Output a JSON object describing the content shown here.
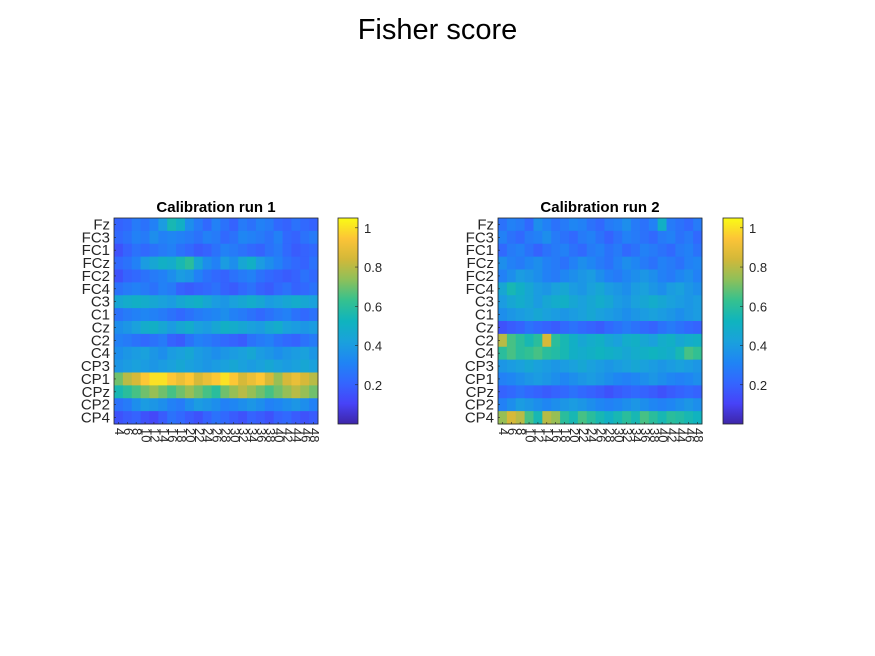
{
  "figure": {
    "title": "Fisher score"
  },
  "chart_data": [
    {
      "type": "heatmap",
      "title": "Calibration run 1",
      "y_labels": [
        "Fz",
        "FC3",
        "FC1",
        "FCz",
        "FC2",
        "FC4",
        "C3",
        "C1",
        "Cz",
        "C2",
        "C4",
        "CP3",
        "CP1",
        "CPz",
        "CP2",
        "CP4"
      ],
      "x_labels": [
        "4",
        "6",
        "8",
        "10",
        "12",
        "14",
        "16",
        "18",
        "20",
        "22",
        "24",
        "26",
        "28",
        "30",
        "32",
        "34",
        "36",
        "38",
        "40",
        "42",
        "44",
        "46",
        "48"
      ],
      "colorbar": {
        "min": 0,
        "max": 1.05,
        "ticks": [
          "0.2",
          "0.4",
          "0.6",
          "0.8",
          "1"
        ],
        "colormap": "parula"
      },
      "values": [
        [
          0.2,
          0.22,
          0.28,
          0.25,
          0.3,
          0.4,
          0.55,
          0.5,
          0.35,
          0.28,
          0.22,
          0.3,
          0.25,
          0.2,
          0.28,
          0.25,
          0.3,
          0.28,
          0.22,
          0.2,
          0.25,
          0.22,
          0.2
        ],
        [
          0.22,
          0.25,
          0.3,
          0.28,
          0.35,
          0.3,
          0.32,
          0.3,
          0.28,
          0.25,
          0.3,
          0.28,
          0.22,
          0.25,
          0.32,
          0.3,
          0.28,
          0.25,
          0.3,
          0.22,
          0.2,
          0.25,
          0.28
        ],
        [
          0.15,
          0.2,
          0.25,
          0.22,
          0.25,
          0.28,
          0.3,
          0.25,
          0.22,
          0.18,
          0.2,
          0.25,
          0.3,
          0.28,
          0.25,
          0.22,
          0.2,
          0.25,
          0.28,
          0.22,
          0.18,
          0.2,
          0.22
        ],
        [
          0.22,
          0.25,
          0.3,
          0.4,
          0.45,
          0.5,
          0.48,
          0.55,
          0.6,
          0.45,
          0.35,
          0.3,
          0.4,
          0.35,
          0.45,
          0.5,
          0.4,
          0.35,
          0.3,
          0.25,
          0.22,
          0.2,
          0.25
        ],
        [
          0.15,
          0.2,
          0.22,
          0.25,
          0.28,
          0.3,
          0.35,
          0.4,
          0.38,
          0.3,
          0.25,
          0.22,
          0.2,
          0.25,
          0.28,
          0.3,
          0.25,
          0.22,
          0.2,
          0.18,
          0.2,
          0.25,
          0.22
        ],
        [
          0.25,
          0.28,
          0.3,
          0.28,
          0.25,
          0.3,
          0.28,
          0.2,
          0.18,
          0.2,
          0.22,
          0.25,
          0.2,
          0.18,
          0.22,
          0.25,
          0.2,
          0.18,
          0.22,
          0.25,
          0.2,
          0.22,
          0.25
        ],
        [
          0.45,
          0.48,
          0.5,
          0.48,
          0.45,
          0.42,
          0.4,
          0.45,
          0.48,
          0.5,
          0.45,
          0.4,
          0.38,
          0.42,
          0.45,
          0.48,
          0.45,
          0.4,
          0.42,
          0.45,
          0.48,
          0.45,
          0.42
        ],
        [
          0.25,
          0.28,
          0.3,
          0.32,
          0.3,
          0.28,
          0.25,
          0.22,
          0.25,
          0.28,
          0.3,
          0.32,
          0.35,
          0.3,
          0.28,
          0.25,
          0.22,
          0.25,
          0.28,
          0.3,
          0.25,
          0.22,
          0.25
        ],
        [
          0.35,
          0.38,
          0.42,
          0.48,
          0.5,
          0.45,
          0.4,
          0.45,
          0.48,
          0.42,
          0.4,
          0.45,
          0.5,
          0.48,
          0.45,
          0.42,
          0.4,
          0.45,
          0.48,
          0.42,
          0.4,
          0.38,
          0.4
        ],
        [
          0.3,
          0.28,
          0.25,
          0.22,
          0.25,
          0.28,
          0.2,
          0.18,
          0.25,
          0.3,
          0.28,
          0.25,
          0.22,
          0.2,
          0.18,
          0.25,
          0.28,
          0.3,
          0.25,
          0.22,
          0.2,
          0.25,
          0.28
        ],
        [
          0.35,
          0.38,
          0.4,
          0.42,
          0.38,
          0.35,
          0.4,
          0.42,
          0.45,
          0.4,
          0.38,
          0.35,
          0.38,
          0.4,
          0.42,
          0.45,
          0.4,
          0.38,
          0.35,
          0.38,
          0.4,
          0.42,
          0.38
        ],
        [
          0.38,
          0.4,
          0.42,
          0.4,
          0.38,
          0.4,
          0.42,
          0.45,
          0.42,
          0.4,
          0.38,
          0.4,
          0.42,
          0.45,
          0.42,
          0.4,
          0.42,
          0.45,
          0.42,
          0.4,
          0.42,
          0.45,
          0.42
        ],
        [
          0.7,
          0.8,
          0.85,
          0.95,
          1.0,
          1.0,
          0.95,
          0.9,
          0.95,
          0.85,
          0.9,
          0.95,
          1.0,
          0.95,
          0.85,
          0.9,
          0.95,
          0.85,
          0.75,
          0.85,
          0.9,
          0.85,
          0.8
        ],
        [
          0.55,
          0.6,
          0.65,
          0.7,
          0.75,
          0.7,
          0.65,
          0.7,
          0.75,
          0.7,
          0.65,
          0.6,
          0.7,
          0.75,
          0.8,
          0.75,
          0.7,
          0.65,
          0.7,
          0.75,
          0.8,
          0.75,
          0.7
        ],
        [
          0.25,
          0.28,
          0.35,
          0.4,
          0.38,
          0.35,
          0.3,
          0.28,
          0.35,
          0.4,
          0.38,
          0.35,
          0.3,
          0.32,
          0.35,
          0.38,
          0.35,
          0.3,
          0.32,
          0.35,
          0.38,
          0.35,
          0.3
        ],
        [
          0.15,
          0.18,
          0.2,
          0.15,
          0.12,
          0.18,
          0.25,
          0.22,
          0.18,
          0.15,
          0.2,
          0.25,
          0.22,
          0.18,
          0.15,
          0.2,
          0.18,
          0.15,
          0.2,
          0.22,
          0.18,
          0.15,
          0.18
        ]
      ]
    },
    {
      "type": "heatmap",
      "title": "Calibration run 2",
      "y_labels": [
        "Fz",
        "FC3",
        "FC1",
        "FCz",
        "FC2",
        "FC4",
        "C3",
        "C1",
        "Cz",
        "C2",
        "C4",
        "CP3",
        "CP1",
        "CPz",
        "CP2",
        "CP4"
      ],
      "x_labels": [
        "4",
        "6",
        "8",
        "10",
        "12",
        "14",
        "16",
        "18",
        "20",
        "22",
        "24",
        "26",
        "28",
        "30",
        "32",
        "34",
        "36",
        "38",
        "40",
        "42",
        "44",
        "46",
        "48"
      ],
      "colorbar": {
        "min": 0,
        "max": 1.05,
        "ticks": [
          "0.2",
          "0.4",
          "0.6",
          "0.8",
          "1"
        ],
        "colormap": "parula"
      },
      "values": [
        [
          0.25,
          0.3,
          0.28,
          0.22,
          0.35,
          0.3,
          0.25,
          0.28,
          0.32,
          0.3,
          0.25,
          0.22,
          0.28,
          0.3,
          0.35,
          0.28,
          0.25,
          0.3,
          0.5,
          0.28,
          0.25,
          0.22,
          0.28
        ],
        [
          0.3,
          0.25,
          0.22,
          0.28,
          0.3,
          0.35,
          0.28,
          0.25,
          0.22,
          0.28,
          0.3,
          0.25,
          0.2,
          0.25,
          0.3,
          0.28,
          0.25,
          0.22,
          0.28,
          0.3,
          0.25,
          0.28,
          0.22
        ],
        [
          0.22,
          0.28,
          0.3,
          0.25,
          0.2,
          0.25,
          0.28,
          0.3,
          0.25,
          0.22,
          0.28,
          0.3,
          0.25,
          0.28,
          0.22,
          0.25,
          0.3,
          0.28,
          0.25,
          0.22,
          0.28,
          0.3,
          0.25
        ],
        [
          0.35,
          0.3,
          0.28,
          0.32,
          0.35,
          0.3,
          0.28,
          0.25,
          0.3,
          0.35,
          0.32,
          0.28,
          0.25,
          0.3,
          0.35,
          0.32,
          0.28,
          0.25,
          0.3,
          0.28,
          0.25,
          0.3,
          0.32
        ],
        [
          0.3,
          0.35,
          0.4,
          0.38,
          0.35,
          0.3,
          0.28,
          0.32,
          0.35,
          0.38,
          0.4,
          0.35,
          0.3,
          0.28,
          0.32,
          0.35,
          0.38,
          0.35,
          0.3,
          0.28,
          0.32,
          0.35,
          0.3
        ],
        [
          0.45,
          0.55,
          0.5,
          0.45,
          0.4,
          0.38,
          0.42,
          0.45,
          0.4,
          0.38,
          0.42,
          0.45,
          0.4,
          0.38,
          0.35,
          0.4,
          0.42,
          0.38,
          0.35,
          0.4,
          0.42,
          0.38,
          0.35
        ],
        [
          0.4,
          0.45,
          0.48,
          0.45,
          0.4,
          0.45,
          0.48,
          0.5,
          0.45,
          0.42,
          0.45,
          0.48,
          0.45,
          0.4,
          0.38,
          0.42,
          0.45,
          0.48,
          0.45,
          0.42,
          0.4,
          0.38,
          0.4
        ],
        [
          0.35,
          0.38,
          0.4,
          0.42,
          0.45,
          0.42,
          0.4,
          0.38,
          0.4,
          0.42,
          0.45,
          0.42,
          0.4,
          0.38,
          0.35,
          0.38,
          0.4,
          0.42,
          0.4,
          0.38,
          0.35,
          0.38,
          0.4
        ],
        [
          0.15,
          0.18,
          0.2,
          0.25,
          0.22,
          0.2,
          0.18,
          0.22,
          0.25,
          0.22,
          0.2,
          0.18,
          0.22,
          0.25,
          0.28,
          0.25,
          0.22,
          0.2,
          0.25,
          0.28,
          0.25,
          0.22,
          0.2
        ],
        [
          0.8,
          0.65,
          0.6,
          0.55,
          0.6,
          0.85,
          0.6,
          0.55,
          0.5,
          0.45,
          0.48,
          0.5,
          0.45,
          0.42,
          0.48,
          0.5,
          0.45,
          0.42,
          0.48,
          0.5,
          0.45,
          0.48,
          0.5
        ],
        [
          0.6,
          0.65,
          0.6,
          0.62,
          0.65,
          0.6,
          0.58,
          0.55,
          0.5,
          0.48,
          0.5,
          0.52,
          0.5,
          0.48,
          0.45,
          0.48,
          0.5,
          0.52,
          0.5,
          0.48,
          0.55,
          0.65,
          0.62
        ],
        [
          0.38,
          0.4,
          0.42,
          0.45,
          0.42,
          0.4,
          0.38,
          0.4,
          0.42,
          0.45,
          0.42,
          0.4,
          0.38,
          0.4,
          0.42,
          0.45,
          0.42,
          0.4,
          0.38,
          0.4,
          0.42,
          0.4,
          0.38
        ],
        [
          0.3,
          0.32,
          0.35,
          0.38,
          0.4,
          0.38,
          0.35,
          0.32,
          0.35,
          0.38,
          0.4,
          0.38,
          0.35,
          0.32,
          0.3,
          0.32,
          0.35,
          0.38,
          0.35,
          0.32,
          0.3,
          0.32,
          0.35
        ],
        [
          0.2,
          0.22,
          0.25,
          0.22,
          0.2,
          0.18,
          0.2,
          0.22,
          0.25,
          0.22,
          0.2,
          0.18,
          0.15,
          0.18,
          0.2,
          0.22,
          0.2,
          0.18,
          0.15,
          0.18,
          0.2,
          0.22,
          0.2
        ],
        [
          0.3,
          0.35,
          0.4,
          0.38,
          0.35,
          0.32,
          0.35,
          0.38,
          0.4,
          0.38,
          0.35,
          0.32,
          0.3,
          0.32,
          0.35,
          0.38,
          0.35,
          0.32,
          0.3,
          0.32,
          0.35,
          0.38,
          0.35
        ],
        [
          0.75,
          0.85,
          0.8,
          0.65,
          0.55,
          0.8,
          0.75,
          0.6,
          0.55,
          0.65,
          0.6,
          0.55,
          0.5,
          0.55,
          0.6,
          0.55,
          0.65,
          0.6,
          0.55,
          0.6,
          0.58,
          0.55,
          0.52
        ]
      ]
    }
  ]
}
